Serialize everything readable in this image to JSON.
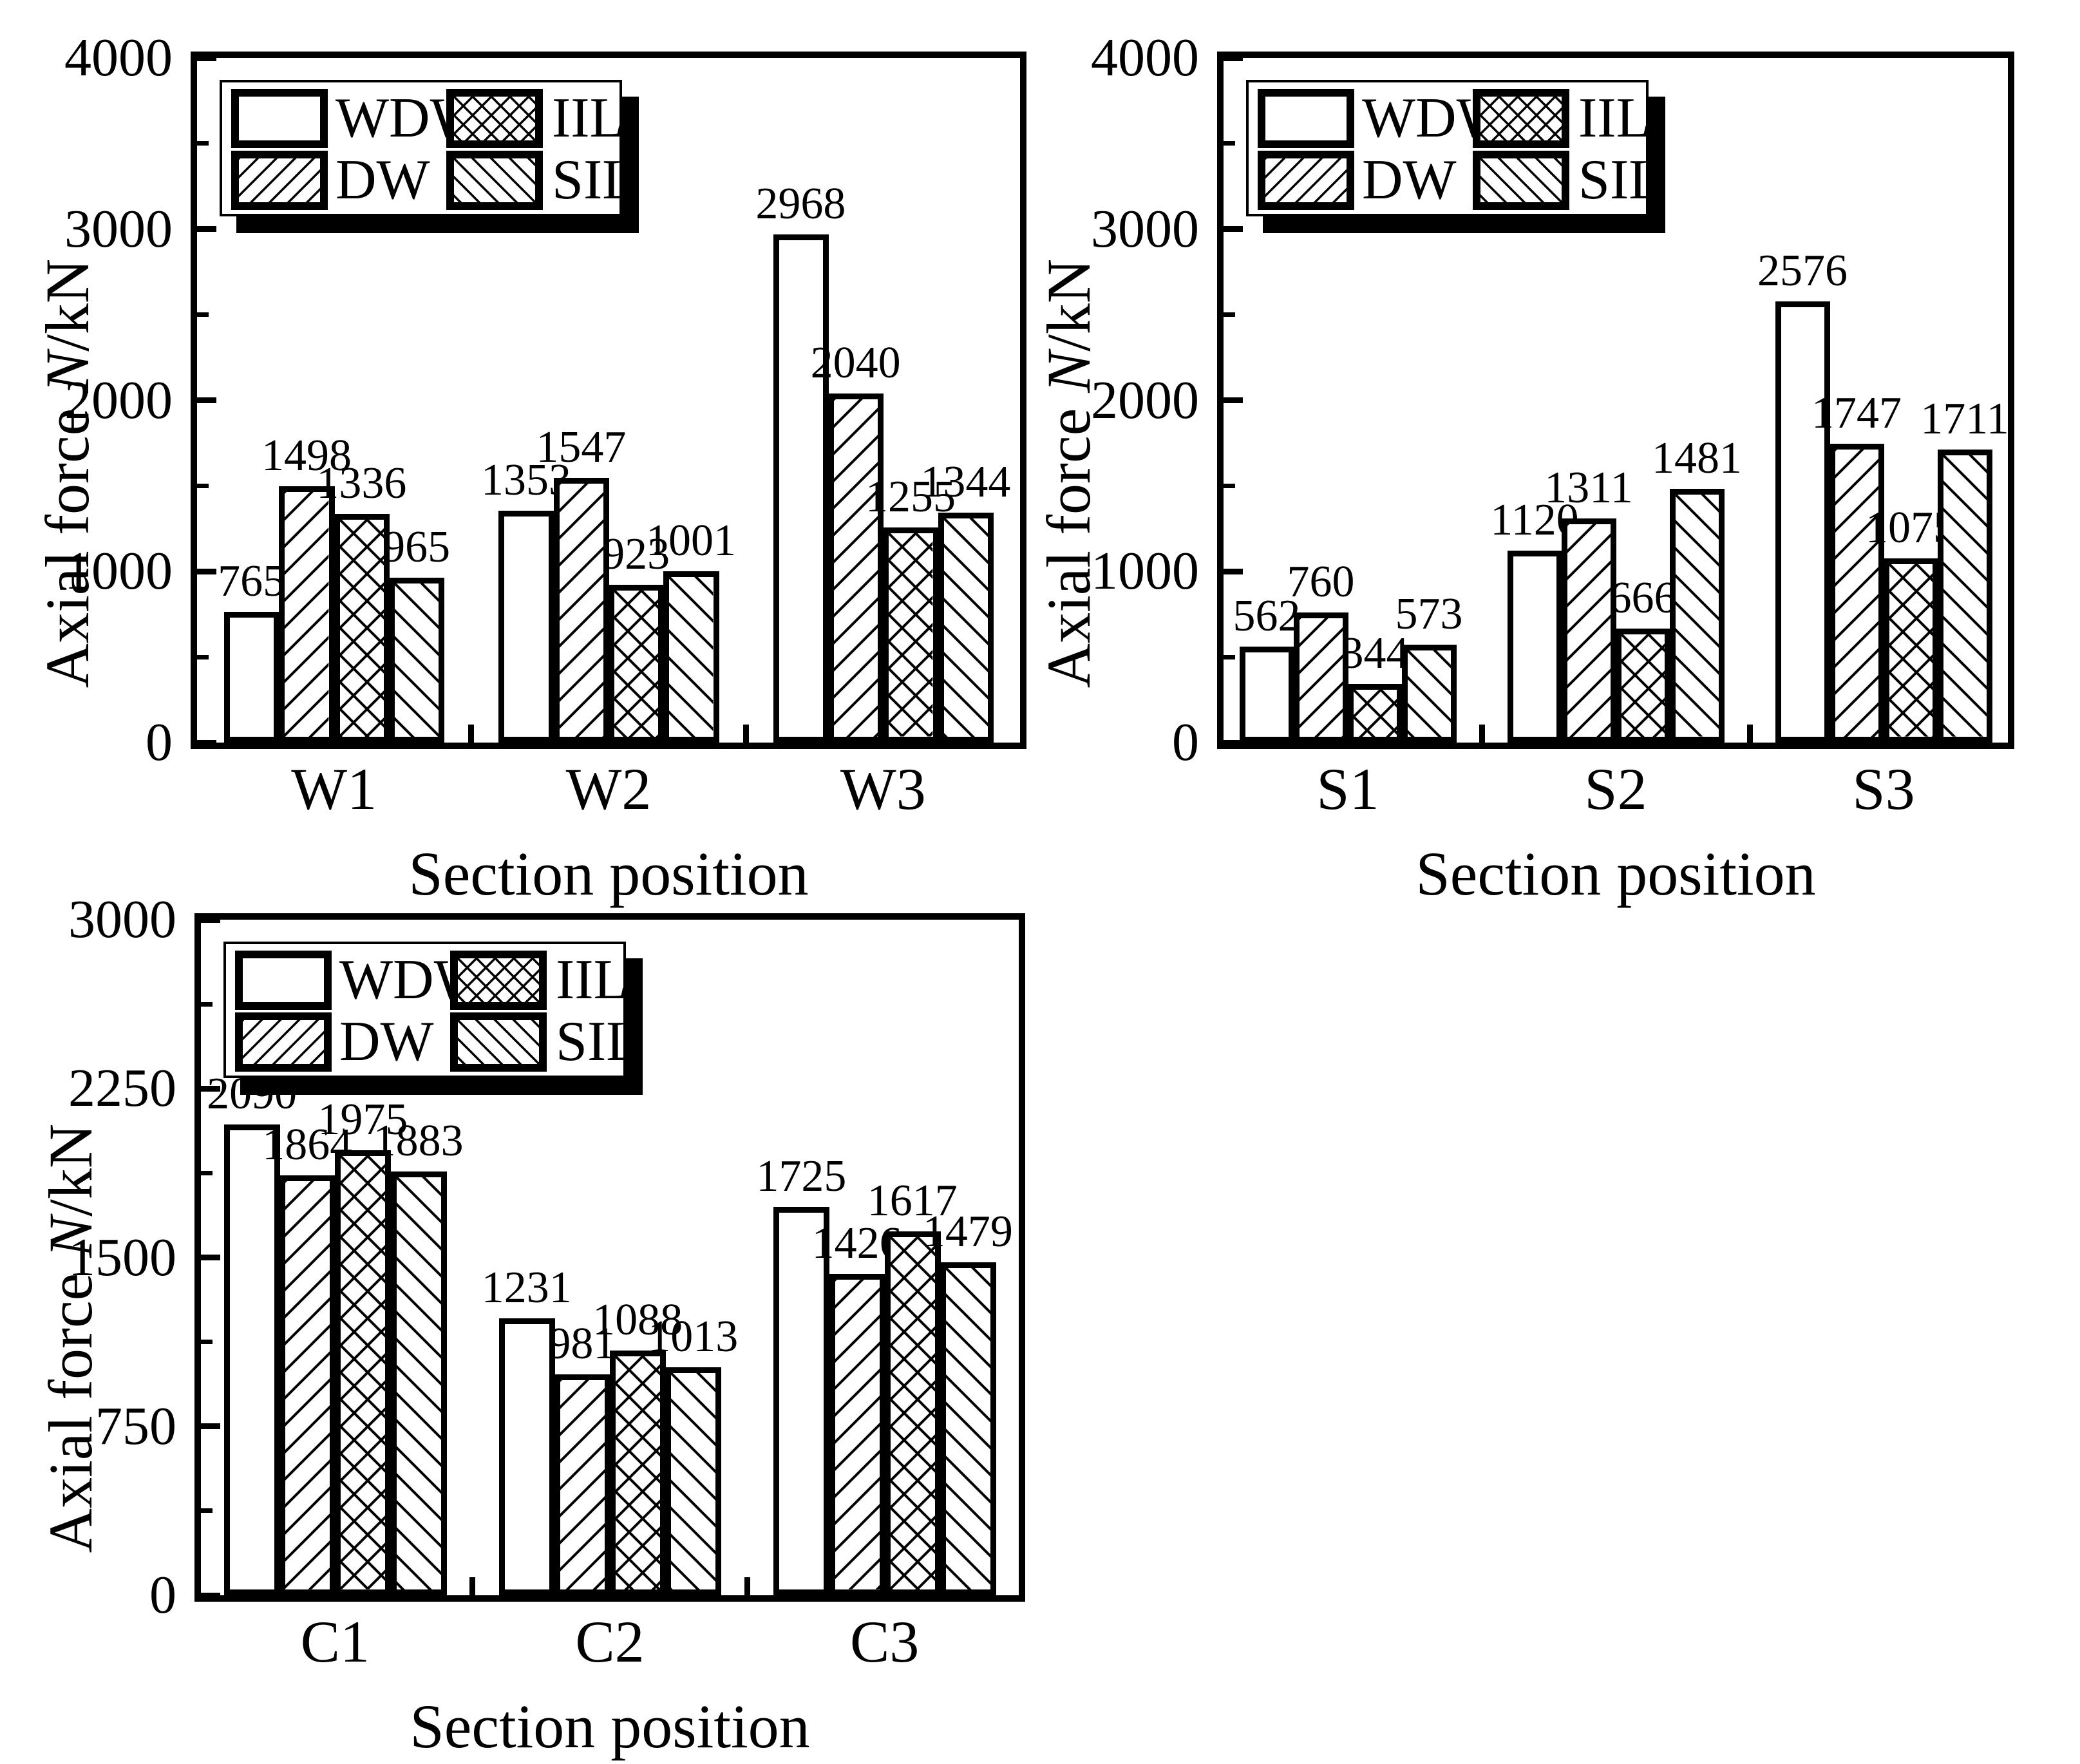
{
  "figure": {
    "background_color": "#ffffff",
    "ink_color": "#000000",
    "xlabel": "Section position",
    "ylabel": {
      "pre": "Axial force ",
      "italic": "N",
      "post": "/kN"
    },
    "legend_items": [
      {
        "label": "WDW",
        "hatch": "none"
      },
      {
        "label": "DW",
        "hatch": "diag-up"
      },
      {
        "label": "IIL",
        "hatch": "cross"
      },
      {
        "label": "SIL",
        "hatch": "diag-down"
      }
    ]
  },
  "chart_data": [
    {
      "type": "bar",
      "title": "",
      "xlabel": "Section position",
      "ylabel": "Axial force N/kN",
      "ylim": [
        0,
        4000
      ],
      "yticks": [
        0,
        1000,
        2000,
        3000,
        4000
      ],
      "yminor_ticks": [
        500,
        1500,
        2500,
        3500
      ],
      "grid": false,
      "legend_position": "upper-left-inside",
      "categories": [
        "W1",
        "W2",
        "W3"
      ],
      "series": [
        {
          "name": "WDW",
          "hatch": "none",
          "values": [
            765,
            1353,
            2968
          ]
        },
        {
          "name": "DW",
          "hatch": "diag-up",
          "values": [
            1498,
            1547,
            2040
          ]
        },
        {
          "name": "IIL",
          "hatch": "cross",
          "values": [
            1336,
            923,
            1255
          ]
        },
        {
          "name": "SIL",
          "hatch": "diag-down",
          "values": [
            965,
            1001,
            1344
          ]
        }
      ]
    },
    {
      "type": "bar",
      "title": "",
      "xlabel": "Section position",
      "ylabel": "Axial force N/kN",
      "ylim": [
        0,
        4000
      ],
      "yticks": [
        0,
        1000,
        2000,
        3000,
        4000
      ],
      "yminor_ticks": [
        500,
        1500,
        2500,
        3500
      ],
      "grid": false,
      "legend_position": "upper-left-inside",
      "categories": [
        "S1",
        "S2",
        "S3"
      ],
      "series": [
        {
          "name": "WDW",
          "hatch": "none",
          "values": [
            562,
            1120,
            2576
          ]
        },
        {
          "name": "DW",
          "hatch": "diag-up",
          "values": [
            760,
            1311,
            1747
          ]
        },
        {
          "name": "IIL",
          "hatch": "cross",
          "values": [
            344,
            666,
            1075
          ]
        },
        {
          "name": "SIL",
          "hatch": "diag-down",
          "values": [
            573,
            1481,
            1711
          ]
        }
      ]
    },
    {
      "type": "bar",
      "title": "",
      "xlabel": "Section position",
      "ylabel": "Axial force N/kN",
      "ylim": [
        0,
        3000
      ],
      "yticks": [
        0,
        750,
        1500,
        2250,
        3000
      ],
      "yminor_ticks": [
        375,
        1125,
        1875,
        2625
      ],
      "grid": false,
      "legend_position": "upper-left-inside",
      "categories": [
        "C1",
        "C2",
        "C3"
      ],
      "series": [
        {
          "name": "WDW",
          "hatch": "none",
          "values": [
            2090,
            1231,
            1725
          ]
        },
        {
          "name": "DW",
          "hatch": "diag-up",
          "values": [
            1864,
            981,
            1426
          ]
        },
        {
          "name": "IIL",
          "hatch": "cross",
          "values": [
            1975,
            1088,
            1617
          ]
        },
        {
          "name": "SIL",
          "hatch": "diag-down",
          "values": [
            1883,
            1013,
            1479
          ]
        }
      ]
    }
  ]
}
